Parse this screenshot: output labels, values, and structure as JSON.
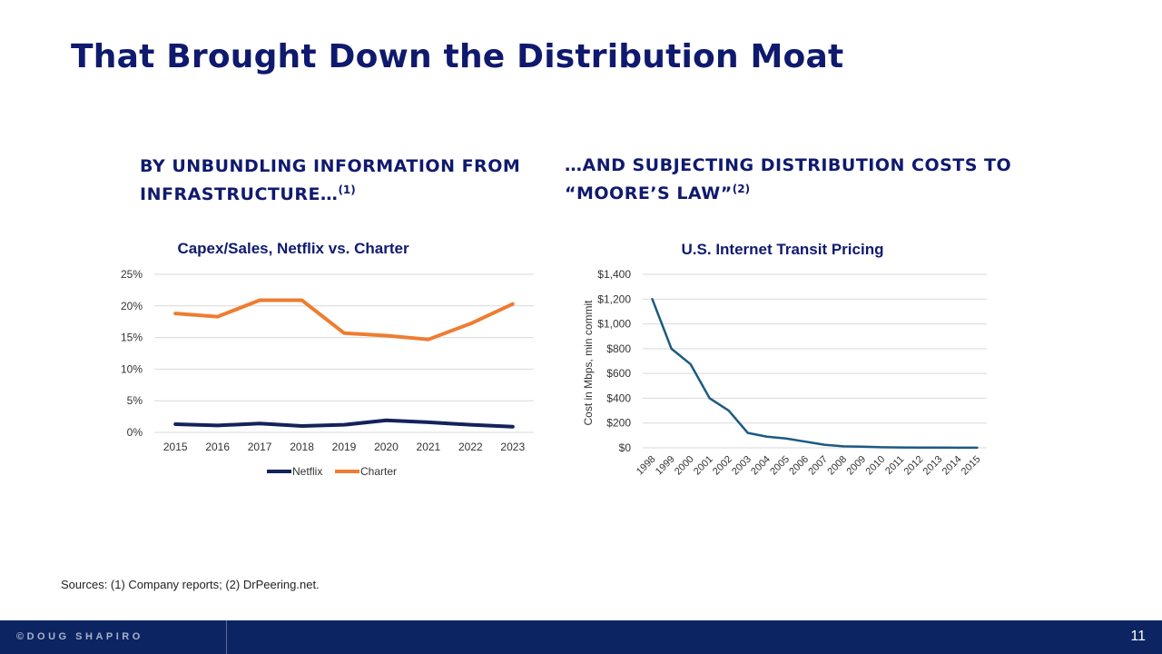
{
  "slide": {
    "title": "That Brought Down the Distribution Moat",
    "left_heading": "BY UNBUNDLING INFORMATION FROM INFRASTRUCTURE…",
    "left_heading_note": "(1)",
    "right_heading_l1": "…AND SUBJECTING DISTRIBUTION COSTS TO",
    "right_heading_l2": "“MOORE’S LAW”",
    "right_heading_note": "(2)",
    "sources": "Sources:  (1) Company reports; (2) DrPeering.net."
  },
  "footer": {
    "brand": "©DOUG SHAPIRO",
    "page_number": "11"
  },
  "colors": {
    "navy": "#0f1a6e",
    "netflix": "#14225c",
    "charter": "#ed7d31",
    "transit": "#1b5a80",
    "grid": "#d9d9d9"
  },
  "chart_data": [
    {
      "type": "line",
      "title": "Capex/Sales, Netflix vs. Charter",
      "categories": [
        "2015",
        "2016",
        "2017",
        "2018",
        "2019",
        "2020",
        "2021",
        "2022",
        "2023"
      ],
      "series": [
        {
          "name": "Netflix",
          "values": [
            1.3,
            1.1,
            1.4,
            1.0,
            1.2,
            1.9,
            1.6,
            1.2,
            0.9
          ]
        },
        {
          "name": "Charter",
          "values": [
            18.8,
            18.3,
            20.9,
            20.9,
            15.7,
            15.3,
            14.7,
            17.2,
            20.3
          ]
        }
      ],
      "ylim": [
        0,
        25
      ],
      "ytick_values": [
        0,
        5,
        10,
        15,
        20,
        25
      ],
      "ytick_labels": [
        "0%",
        "5%",
        "10%",
        "15%",
        "20%",
        "25%"
      ],
      "xlabel": "",
      "ylabel": "",
      "legend": "bottom",
      "grid": true
    },
    {
      "type": "line",
      "title": "U.S. Internet Transit Pricing",
      "categories": [
        "1998",
        "1999",
        "2000",
        "2001",
        "2002",
        "2003",
        "2004",
        "2005",
        "2006",
        "2007",
        "2008",
        "2009",
        "2010",
        "2011",
        "2012",
        "2013",
        "2014",
        "2015"
      ],
      "series": [
        {
          "name": "Transit price",
          "values": [
            1200,
            800,
            675,
            400,
            300,
            120,
            90,
            75,
            50,
            25,
            12,
            9,
            5,
            3,
            2,
            1.4,
            0.9,
            0.63
          ]
        }
      ],
      "ylim": [
        0,
        1400
      ],
      "ytick_values": [
        0,
        200,
        400,
        600,
        800,
        1000,
        1200,
        1400
      ],
      "ytick_labels": [
        "$0",
        "$200",
        "$400",
        "$600",
        "$800",
        "$1,000",
        "$1,200",
        "$1,400"
      ],
      "xlabel": "",
      "ylabel": "Cost in Mbps, min commit",
      "legend": "none",
      "grid": true
    }
  ]
}
